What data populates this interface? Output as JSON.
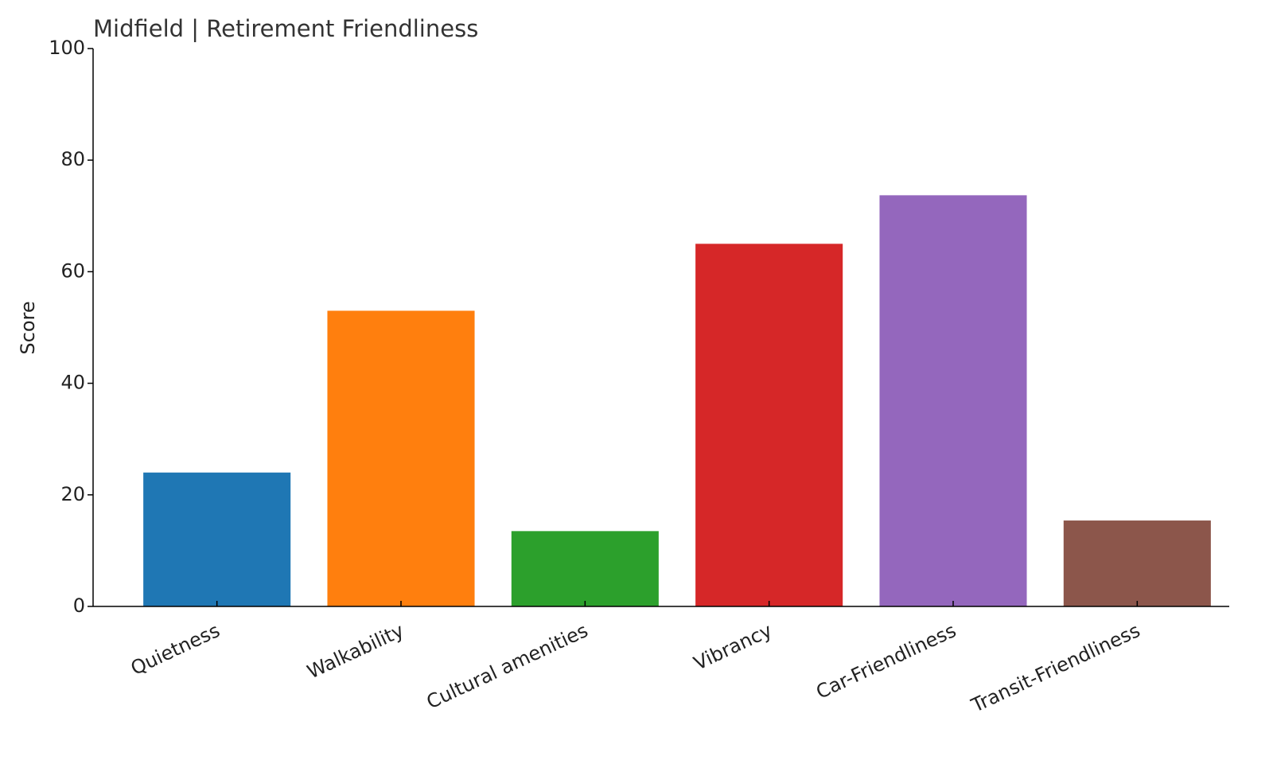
{
  "chart_data": {
    "type": "bar",
    "title": "Midfield | Retirement Friendliness",
    "y_label": "Score",
    "categories": [
      "Quietness",
      "Walkability",
      "Cultural amenities",
      "Vibrancy",
      "Car-Friendliness",
      "Transit-Friendliness"
    ],
    "values": [
      24,
      53,
      13.5,
      65,
      73.7,
      15.4
    ],
    "colors": [
      "#1f77b4",
      "#ff7f0e",
      "#2ca02c",
      "#d62728",
      "#9467bd",
      "#8c564b"
    ],
    "ylim": [
      0,
      100
    ],
    "yticks": [
      0,
      20,
      40,
      60,
      80,
      100
    ],
    "grid": false
  }
}
